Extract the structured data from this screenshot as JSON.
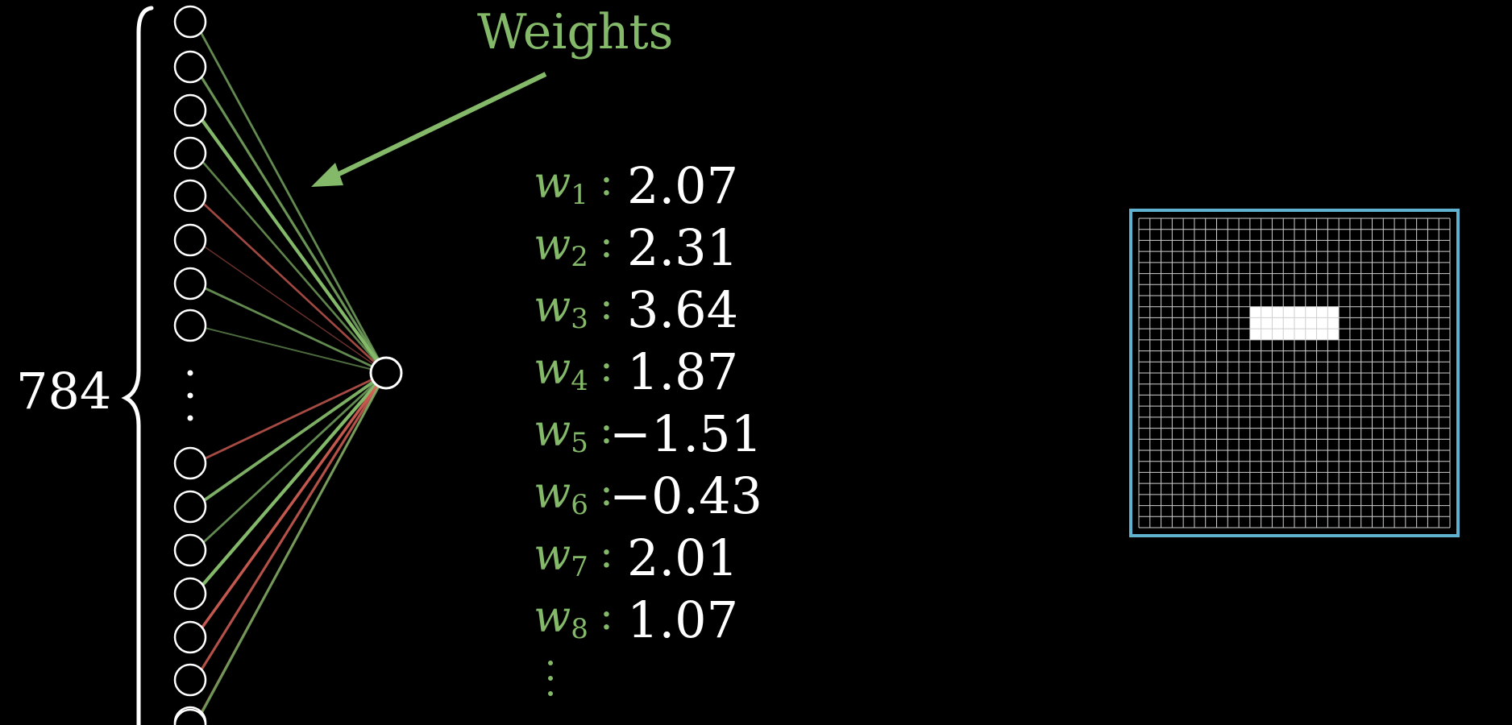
{
  "input_layer": {
    "count_label": "784"
  },
  "annotation": {
    "title": "Weights"
  },
  "weights": [
    {
      "name": "w",
      "index": "1",
      "value": "2.07",
      "sign": "pos"
    },
    {
      "name": "w",
      "index": "2",
      "value": "2.31",
      "sign": "pos"
    },
    {
      "name": "w",
      "index": "3",
      "value": "3.64",
      "sign": "pos"
    },
    {
      "name": "w",
      "index": "4",
      "value": "1.87",
      "sign": "pos"
    },
    {
      "name": "w",
      "index": "5",
      "value": "−1.51",
      "sign": "neg"
    },
    {
      "name": "w",
      "index": "6",
      "value": "−0.43",
      "sign": "neg"
    },
    {
      "name": "w",
      "index": "7",
      "value": "2.01",
      "sign": "pos"
    },
    {
      "name": "w",
      "index": "8",
      "value": "1.07",
      "sign": "pos"
    }
  ],
  "colors": {
    "positive_weight": "#84b96a",
    "negative_weight": "#e0655b",
    "grid_border": "#5fb3d0",
    "text": "#ffffff",
    "background": "#000000"
  },
  "pixel_grid": {
    "rows": 28,
    "cols": 28,
    "highlight_cells": {
      "row_start": 8,
      "row_end": 11,
      "col_start": 10,
      "col_end": 18
    }
  },
  "connections": [
    {
      "to_input": 1,
      "sign": "pos",
      "strength": 0.6
    },
    {
      "to_input": 2,
      "sign": "pos",
      "strength": 0.7
    },
    {
      "to_input": 3,
      "sign": "pos",
      "strength": 1.0
    },
    {
      "to_input": 4,
      "sign": "pos",
      "strength": 0.55
    },
    {
      "to_input": 5,
      "sign": "neg",
      "strength": 0.55
    },
    {
      "to_input": 6,
      "sign": "neg",
      "strength": 0.2
    },
    {
      "to_input": 7,
      "sign": "pos",
      "strength": 0.6
    },
    {
      "to_input": 8,
      "sign": "pos",
      "strength": 0.35
    },
    {
      "to_input": 9,
      "sign": "neg",
      "strength": 0.6
    },
    {
      "to_input": 10,
      "sign": "pos",
      "strength": 0.9
    },
    {
      "to_input": 11,
      "sign": "pos",
      "strength": 0.6
    },
    {
      "to_input": 12,
      "sign": "pos",
      "strength": 1.0
    },
    {
      "to_input": 13,
      "sign": "neg",
      "strength": 0.8
    },
    {
      "to_input": 14,
      "sign": "neg",
      "strength": 0.7
    },
    {
      "to_input": 15,
      "sign": "neg",
      "strength": 0.2
    },
    {
      "to_input": 16,
      "sign": "pos",
      "strength": 0.7
    }
  ]
}
